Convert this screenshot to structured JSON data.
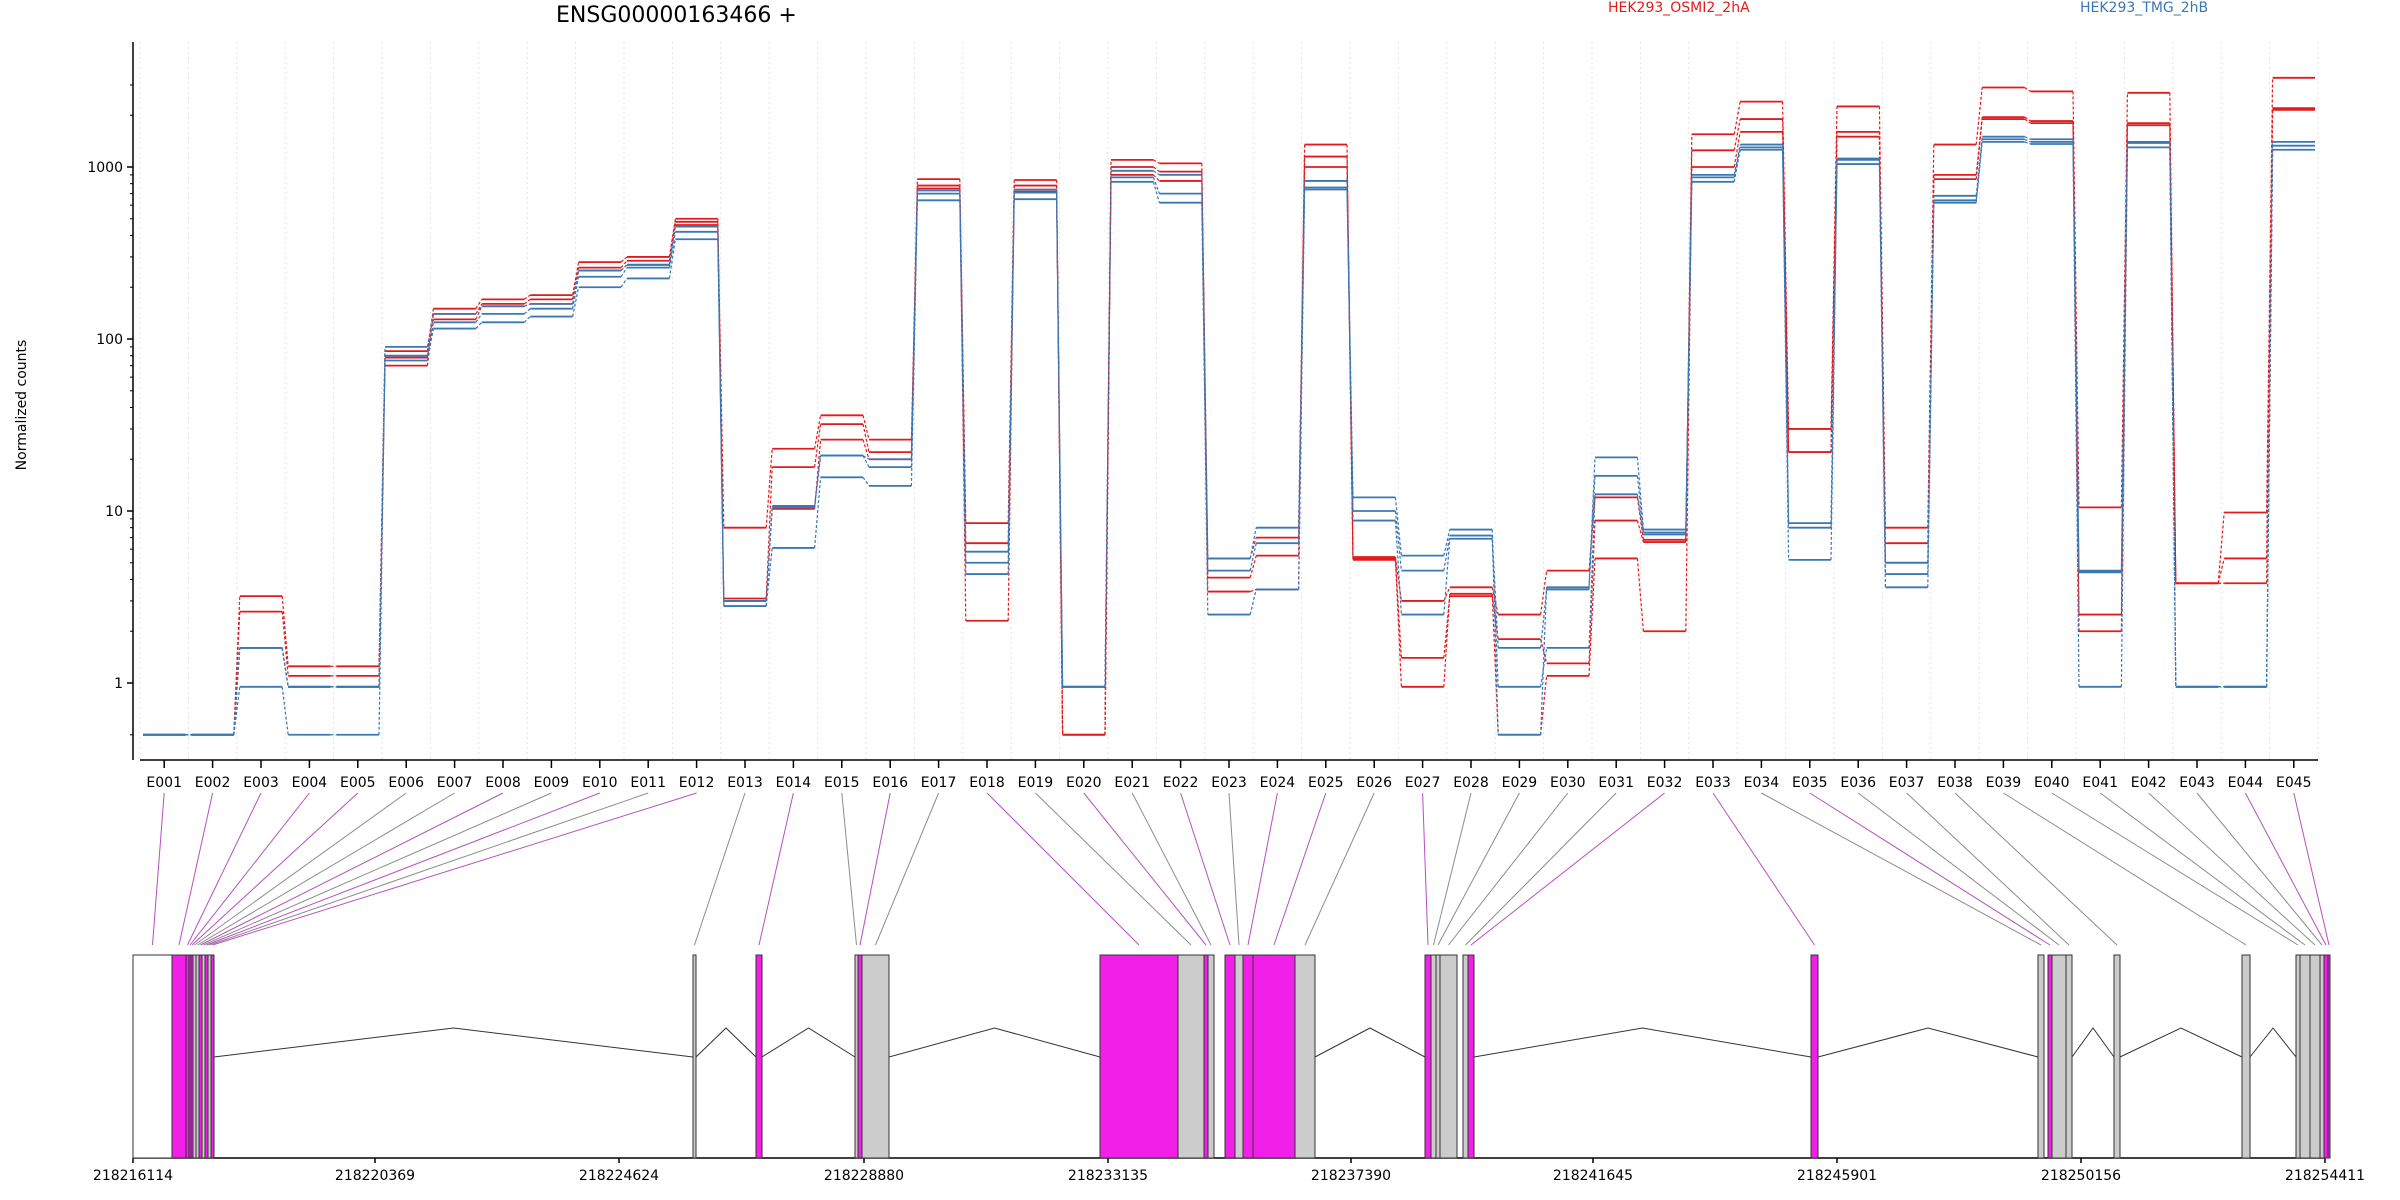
{
  "colors": {
    "cond_a": "#e31a1c",
    "cond_b": "#3a78b4",
    "exon_tested": "#f21fe9",
    "exon_other": "#cccccc",
    "link_tested": "#b64fc0",
    "link_other": "#8c8c8c"
  },
  "chart_data": {
    "type": "line",
    "title": "ENSG00000163466 +",
    "ylabel": "Normalized counts",
    "xlabel": "",
    "yscale": "log",
    "ylim": [
      0.4,
      4000
    ],
    "yticks": [
      1,
      10,
      100,
      1000
    ],
    "grid": "vertical dotted lines at exon boundaries",
    "legend": [
      {
        "name": "HEK293_OSMI2_2hA",
        "color": "#e31a1c"
      },
      {
        "name": "HEK293_TMG_2hB",
        "color": "#3a78b4"
      }
    ],
    "categories": [
      "E001",
      "E002",
      "E003",
      "E004",
      "E005",
      "E006",
      "E007",
      "E008",
      "E009",
      "E010",
      "E011",
      "E012",
      "E013",
      "E014",
      "E015",
      "E016",
      "E017",
      "E018",
      "E019",
      "E020",
      "E021",
      "E022",
      "E023",
      "E024",
      "E025",
      "E026",
      "E027",
      "E028",
      "E029",
      "E030",
      "E031",
      "E032",
      "E033",
      "E034",
      "E035",
      "E036",
      "E037",
      "E038",
      "E039",
      "E040",
      "E041",
      "E042",
      "E043",
      "E044",
      "E045"
    ],
    "series": [
      {
        "condition": "HEK293_OSMI2_2hA",
        "values": [
          0.5,
          0.5,
          3.2,
          1.25,
          1.25,
          85,
          150,
          170,
          180,
          280,
          300,
          500,
          8,
          23,
          36,
          26,
          850,
          8.5,
          840,
          0.5,
          1100,
          1050,
          5.3,
          7.0,
          1350,
          5.4,
          3.0,
          3.6,
          2.5,
          4.5,
          12,
          6.8,
          1550,
          2400,
          30,
          2250,
          8,
          1350,
          2900,
          2750,
          10.5,
          2700,
          3.8,
          9.8,
          3300
        ]
      },
      {
        "condition": "HEK293_OSMI2_2hA",
        "values": [
          0.5,
          0.5,
          2.6,
          1.1,
          1.1,
          78,
          140,
          160,
          170,
          260,
          285,
          480,
          3.1,
          18,
          32,
          22,
          780,
          6.5,
          780,
          0.5,
          1000,
          940,
          4.1,
          5.5,
          1150,
          5.2,
          1.4,
          3.2,
          1.8,
          1.3,
          8.8,
          6.6,
          1250,
          1900,
          22,
          1600,
          6.5,
          900,
          1950,
          1850,
          2.5,
          1800,
          3.8,
          5.3,
          2200
        ]
      },
      {
        "condition": "HEK293_OSMI2_2hA",
        "values": [
          0.5,
          0.5,
          1.6,
          0.95,
          0.95,
          70,
          130,
          155,
          160,
          250,
          270,
          460,
          3.0,
          10.3,
          26,
          20,
          750,
          2.3,
          720,
          0.5,
          900,
          830,
          3.4,
          3.5,
          1000,
          5.3,
          0.95,
          3.3,
          0.5,
          1.1,
          5.3,
          2.0,
          1000,
          1600,
          22,
          1500,
          5.0,
          850,
          1900,
          1800,
          2.0,
          1750,
          3.8,
          3.8,
          2150
        ]
      },
      {
        "condition": "HEK293_TMG_2hB",
        "values": [
          0.5,
          0.5,
          1.6,
          0.95,
          0.95,
          90,
          140,
          155,
          160,
          250,
          270,
          450,
          3.0,
          10.7,
          21,
          20,
          730,
          5.8,
          740,
          0.95,
          950,
          900,
          5.3,
          8,
          830,
          12,
          5.5,
          7.8,
          0.5,
          3.6,
          20.5,
          7.8,
          900,
          1350,
          8.5,
          1120,
          5.0,
          680,
          1500,
          1450,
          4.5,
          1400,
          0.95,
          0.95,
          1400
        ]
      },
      {
        "condition": "HEK293_TMG_2hB",
        "values": [
          0.5,
          0.5,
          1.6,
          0.95,
          0.95,
          80,
          125,
          140,
          150,
          230,
          260,
          420,
          2.8,
          10.5,
          21,
          18,
          700,
          5.0,
          710,
          0.95,
          870,
          700,
          4.5,
          6.5,
          760,
          10,
          4.5,
          7.2,
          1.6,
          3.5,
          16,
          7.5,
          870,
          1300,
          8.0,
          1100,
          4.3,
          640,
          1450,
          1400,
          4.4,
          1380,
          0.95,
          0.95,
          1330
        ]
      },
      {
        "condition": "HEK293_TMG_2hB",
        "values": [
          0.5,
          0.5,
          0.95,
          0.5,
          0.5,
          75,
          115,
          125,
          135,
          200,
          225,
          380,
          2.8,
          6.1,
          15.7,
          14,
          640,
          4.3,
          650,
          0.95,
          820,
          620,
          2.5,
          3.5,
          740,
          8.8,
          2.5,
          6.9,
          0.95,
          1.6,
          12.5,
          7.3,
          820,
          1260,
          5.2,
          1040,
          3.6,
          620,
          1400,
          1360,
          0.95,
          1300,
          0.95,
          0.95,
          1260
        ]
      }
    ],
    "gene_model": {
      "coordinate_ticks": [
        "218216114",
        "218220369",
        "218224624",
        "218228880",
        "218233135",
        "218237390",
        "218241645",
        "218245901",
        "218250156",
        "218254411"
      ],
      "exon_tested": [
        true,
        true,
        true,
        true,
        true,
        false,
        false,
        true,
        false,
        true,
        false,
        true,
        false,
        true,
        false,
        true,
        false,
        true,
        false,
        true,
        false,
        true,
        false,
        true,
        true,
        false,
        true,
        false,
        false,
        false,
        false,
        true,
        true,
        false,
        true,
        false,
        false,
        false,
        false,
        false,
        false,
        false,
        false,
        true,
        true
      ]
    }
  }
}
